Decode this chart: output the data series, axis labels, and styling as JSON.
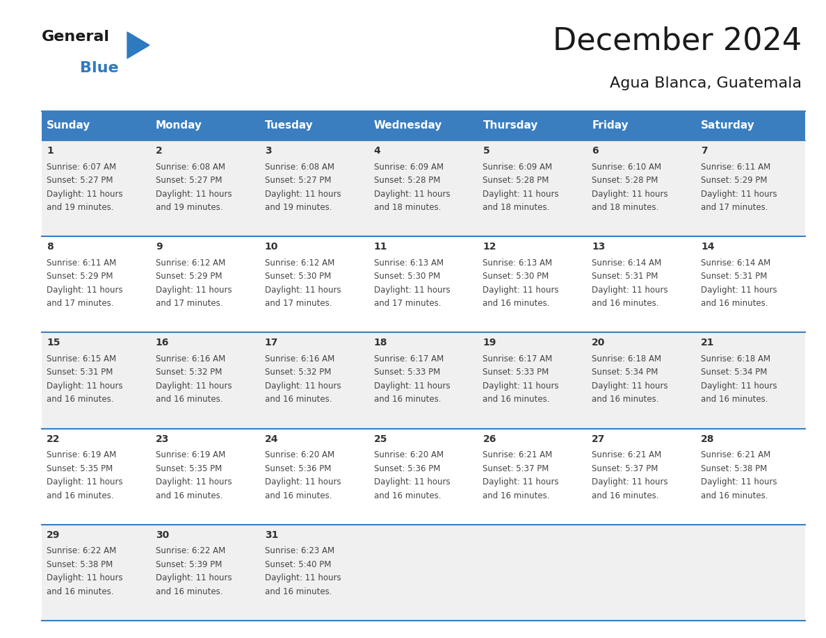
{
  "title": "December 2024",
  "subtitle": "Agua Blanca, Guatemala",
  "header_color": "#3a7ebf",
  "header_text_color": "#ffffff",
  "background_color": "#ffffff",
  "cell_bg_even": "#f0f0f0",
  "cell_bg_odd": "#ffffff",
  "border_color": "#3a7ebf",
  "days_of_week": [
    "Sunday",
    "Monday",
    "Tuesday",
    "Wednesday",
    "Thursday",
    "Friday",
    "Saturday"
  ],
  "weeks": [
    [
      {
        "day": 1,
        "sunrise": "6:07 AM",
        "sunset": "5:27 PM",
        "daylight_hours": 11,
        "daylight_minutes": 19
      },
      {
        "day": 2,
        "sunrise": "6:08 AM",
        "sunset": "5:27 PM",
        "daylight_hours": 11,
        "daylight_minutes": 19
      },
      {
        "day": 3,
        "sunrise": "6:08 AM",
        "sunset": "5:27 PM",
        "daylight_hours": 11,
        "daylight_minutes": 19
      },
      {
        "day": 4,
        "sunrise": "6:09 AM",
        "sunset": "5:28 PM",
        "daylight_hours": 11,
        "daylight_minutes": 18
      },
      {
        "day": 5,
        "sunrise": "6:09 AM",
        "sunset": "5:28 PM",
        "daylight_hours": 11,
        "daylight_minutes": 18
      },
      {
        "day": 6,
        "sunrise": "6:10 AM",
        "sunset": "5:28 PM",
        "daylight_hours": 11,
        "daylight_minutes": 18
      },
      {
        "day": 7,
        "sunrise": "6:11 AM",
        "sunset": "5:29 PM",
        "daylight_hours": 11,
        "daylight_minutes": 17
      }
    ],
    [
      {
        "day": 8,
        "sunrise": "6:11 AM",
        "sunset": "5:29 PM",
        "daylight_hours": 11,
        "daylight_minutes": 17
      },
      {
        "day": 9,
        "sunrise": "6:12 AM",
        "sunset": "5:29 PM",
        "daylight_hours": 11,
        "daylight_minutes": 17
      },
      {
        "day": 10,
        "sunrise": "6:12 AM",
        "sunset": "5:30 PM",
        "daylight_hours": 11,
        "daylight_minutes": 17
      },
      {
        "day": 11,
        "sunrise": "6:13 AM",
        "sunset": "5:30 PM",
        "daylight_hours": 11,
        "daylight_minutes": 17
      },
      {
        "day": 12,
        "sunrise": "6:13 AM",
        "sunset": "5:30 PM",
        "daylight_hours": 11,
        "daylight_minutes": 16
      },
      {
        "day": 13,
        "sunrise": "6:14 AM",
        "sunset": "5:31 PM",
        "daylight_hours": 11,
        "daylight_minutes": 16
      },
      {
        "day": 14,
        "sunrise": "6:14 AM",
        "sunset": "5:31 PM",
        "daylight_hours": 11,
        "daylight_minutes": 16
      }
    ],
    [
      {
        "day": 15,
        "sunrise": "6:15 AM",
        "sunset": "5:31 PM",
        "daylight_hours": 11,
        "daylight_minutes": 16
      },
      {
        "day": 16,
        "sunrise": "6:16 AM",
        "sunset": "5:32 PM",
        "daylight_hours": 11,
        "daylight_minutes": 16
      },
      {
        "day": 17,
        "sunrise": "6:16 AM",
        "sunset": "5:32 PM",
        "daylight_hours": 11,
        "daylight_minutes": 16
      },
      {
        "day": 18,
        "sunrise": "6:17 AM",
        "sunset": "5:33 PM",
        "daylight_hours": 11,
        "daylight_minutes": 16
      },
      {
        "day": 19,
        "sunrise": "6:17 AM",
        "sunset": "5:33 PM",
        "daylight_hours": 11,
        "daylight_minutes": 16
      },
      {
        "day": 20,
        "sunrise": "6:18 AM",
        "sunset": "5:34 PM",
        "daylight_hours": 11,
        "daylight_minutes": 16
      },
      {
        "day": 21,
        "sunrise": "6:18 AM",
        "sunset": "5:34 PM",
        "daylight_hours": 11,
        "daylight_minutes": 16
      }
    ],
    [
      {
        "day": 22,
        "sunrise": "6:19 AM",
        "sunset": "5:35 PM",
        "daylight_hours": 11,
        "daylight_minutes": 16
      },
      {
        "day": 23,
        "sunrise": "6:19 AM",
        "sunset": "5:35 PM",
        "daylight_hours": 11,
        "daylight_minutes": 16
      },
      {
        "day": 24,
        "sunrise": "6:20 AM",
        "sunset": "5:36 PM",
        "daylight_hours": 11,
        "daylight_minutes": 16
      },
      {
        "day": 25,
        "sunrise": "6:20 AM",
        "sunset": "5:36 PM",
        "daylight_hours": 11,
        "daylight_minutes": 16
      },
      {
        "day": 26,
        "sunrise": "6:21 AM",
        "sunset": "5:37 PM",
        "daylight_hours": 11,
        "daylight_minutes": 16
      },
      {
        "day": 27,
        "sunrise": "6:21 AM",
        "sunset": "5:37 PM",
        "daylight_hours": 11,
        "daylight_minutes": 16
      },
      {
        "day": 28,
        "sunrise": "6:21 AM",
        "sunset": "5:38 PM",
        "daylight_hours": 11,
        "daylight_minutes": 16
      }
    ],
    [
      {
        "day": 29,
        "sunrise": "6:22 AM",
        "sunset": "5:38 PM",
        "daylight_hours": 11,
        "daylight_minutes": 16
      },
      {
        "day": 30,
        "sunrise": "6:22 AM",
        "sunset": "5:39 PM",
        "daylight_hours": 11,
        "daylight_minutes": 16
      },
      {
        "day": 31,
        "sunrise": "6:23 AM",
        "sunset": "5:40 PM",
        "daylight_hours": 11,
        "daylight_minutes": 16
      },
      null,
      null,
      null,
      null
    ]
  ],
  "logo_general_color": "#1a1a1a",
  "logo_blue_color": "#2e7abf",
  "logo_triangle_color": "#2e7abf",
  "title_fontsize": 32,
  "subtitle_fontsize": 16,
  "header_fontsize": 11,
  "day_num_fontsize": 10,
  "cell_text_fontsize": 8.5
}
